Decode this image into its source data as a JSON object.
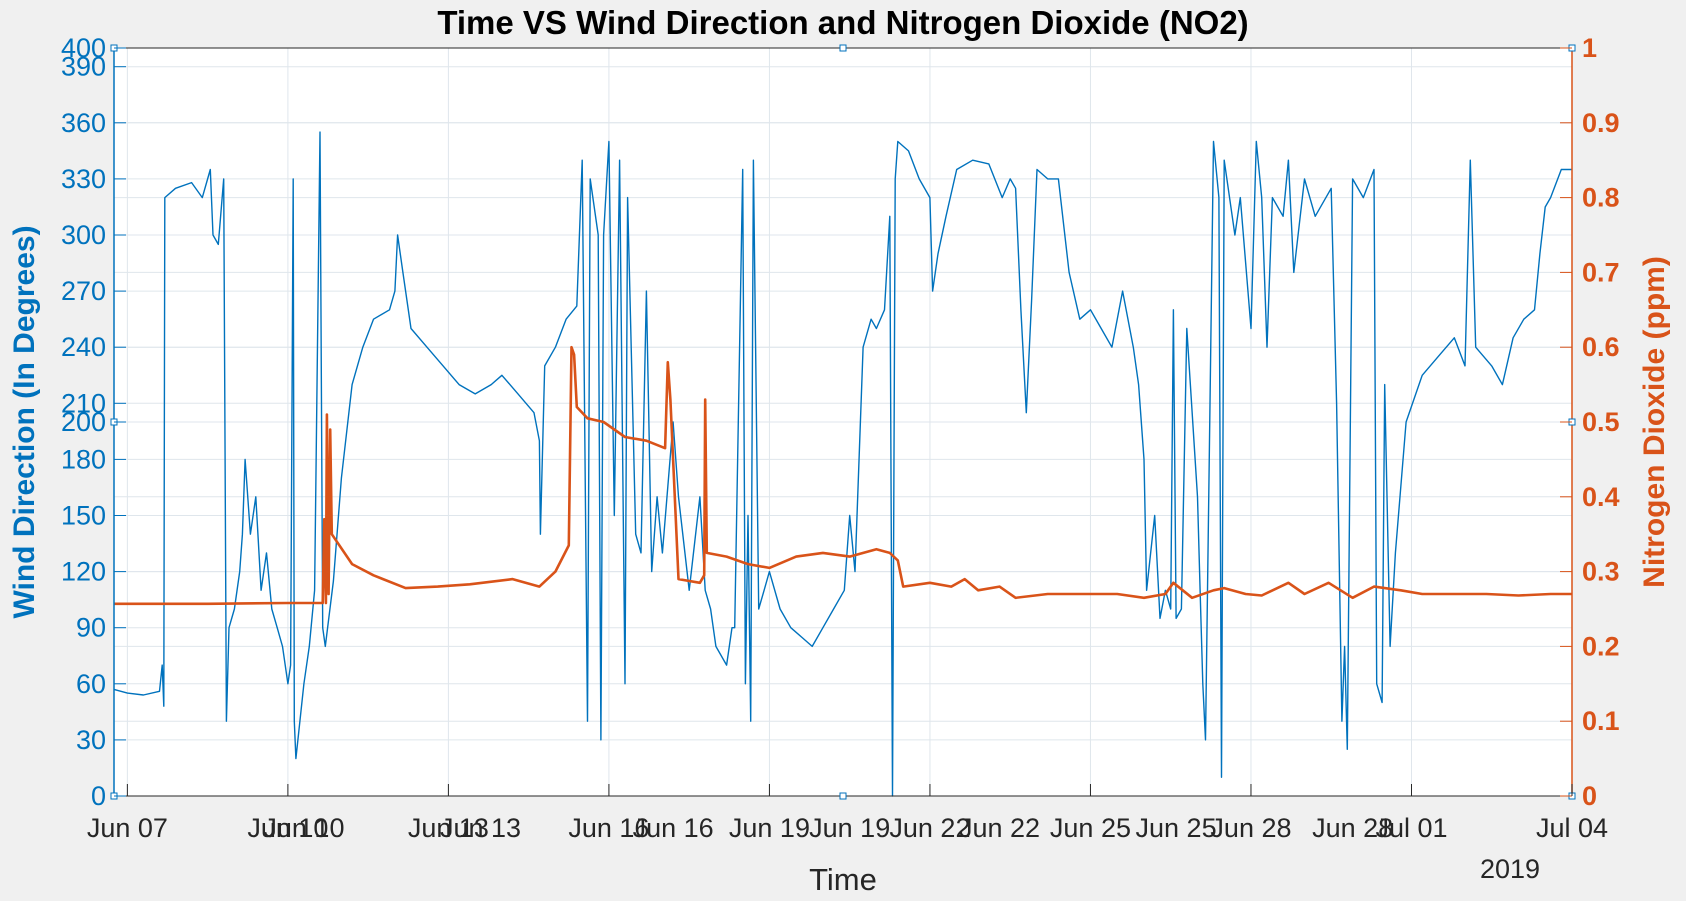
{
  "chart_data": {
    "type": "line",
    "title": "Time VS Wind Direction and Nitrogen Dioxide (NO2)",
    "xlabel": "Time",
    "year_label": "2019",
    "x_ticks": [
      "Jun 07",
      "Jun 10",
      "Jun 13",
      "Jun 16",
      "Jun 19",
      "Jun 22",
      "Jun 25",
      "Jun 28",
      "Jul 01",
      "Jul 04"
    ],
    "x_ticks_overlay": [
      "Jun 10",
      "Jun 13",
      "Jun 16",
      "Jun 19",
      "Jun 22",
      "Jun 25",
      "Jun 28"
    ],
    "x_range_days": [
      6.75,
      34
    ],
    "grid": true,
    "colors": {
      "left": "#0072bd",
      "right": "#d95319",
      "grid": "#dfe6ec",
      "axis": "#262626"
    },
    "left_axis": {
      "label": "Wind Direction (In Degrees)",
      "ylim": [
        0,
        400
      ],
      "ticks_bottom": [
        "0",
        "30",
        "60",
        "90",
        "120",
        "150",
        "180",
        "200"
      ],
      "ticks_top": [
        "210",
        "240",
        "270",
        "300",
        "330",
        "360",
        "390",
        "400"
      ]
    },
    "right_axis": {
      "label": "Nitrogen Dioxide (ppm)",
      "ylim": [
        0,
        1
      ],
      "ticks": [
        "0",
        "0.1",
        "0.2",
        "0.3",
        "0.4",
        "0.5",
        "0.6",
        "0.7",
        "0.8",
        "0.9",
        "1"
      ]
    },
    "series": [
      {
        "axis": "left",
        "color": "#0072bd",
        "points": [
          [
            6.75,
            57
          ],
          [
            7.0,
            55
          ],
          [
            7.3,
            54
          ],
          [
            7.6,
            56
          ],
          [
            7.65,
            70
          ],
          [
            7.68,
            48
          ],
          [
            7.7,
            320
          ],
          [
            7.9,
            325
          ],
          [
            8.2,
            328
          ],
          [
            8.4,
            320
          ],
          [
            8.55,
            335
          ],
          [
            8.6,
            300
          ],
          [
            8.7,
            295
          ],
          [
            8.8,
            330
          ],
          [
            8.85,
            40
          ],
          [
            8.9,
            90
          ],
          [
            9.0,
            100
          ],
          [
            9.1,
            120
          ],
          [
            9.15,
            140
          ],
          [
            9.2,
            180
          ],
          [
            9.3,
            140
          ],
          [
            9.4,
            160
          ],
          [
            9.5,
            110
          ],
          [
            9.6,
            130
          ],
          [
            9.7,
            100
          ],
          [
            9.8,
            90
          ],
          [
            9.9,
            80
          ],
          [
            10.0,
            60
          ],
          [
            10.05,
            70
          ],
          [
            10.1,
            330
          ],
          [
            10.12,
            40
          ],
          [
            10.15,
            20
          ],
          [
            10.3,
            60
          ],
          [
            10.4,
            80
          ],
          [
            10.5,
            110
          ],
          [
            10.6,
            355
          ],
          [
            10.65,
            90
          ],
          [
            10.7,
            80
          ],
          [
            10.85,
            115
          ],
          [
            11.0,
            170
          ],
          [
            11.2,
            220
          ],
          [
            11.4,
            240
          ],
          [
            11.6,
            255
          ],
          [
            11.9,
            260
          ],
          [
            12.0,
            270
          ],
          [
            12.05,
            300
          ],
          [
            12.15,
            280
          ],
          [
            12.3,
            250
          ],
          [
            12.6,
            240
          ],
          [
            12.9,
            230
          ],
          [
            13.2,
            220
          ],
          [
            13.5,
            215
          ],
          [
            13.8,
            220
          ],
          [
            14.0,
            225
          ],
          [
            14.3,
            215
          ],
          [
            14.6,
            205
          ],
          [
            14.7,
            190
          ],
          [
            14.72,
            140
          ],
          [
            14.8,
            230
          ],
          [
            15.0,
            240
          ],
          [
            15.2,
            255
          ],
          [
            15.4,
            262
          ],
          [
            15.5,
            340
          ],
          [
            15.6,
            40
          ],
          [
            15.65,
            330
          ],
          [
            15.8,
            300
          ],
          [
            15.85,
            30
          ],
          [
            15.9,
            300
          ],
          [
            16.0,
            350
          ],
          [
            16.1,
            150
          ],
          [
            16.2,
            340
          ],
          [
            16.3,
            60
          ],
          [
            16.35,
            320
          ],
          [
            16.5,
            140
          ],
          [
            16.6,
            130
          ],
          [
            16.7,
            270
          ],
          [
            16.8,
            120
          ],
          [
            16.9,
            160
          ],
          [
            17.0,
            130
          ],
          [
            17.2,
            200
          ],
          [
            17.3,
            160
          ],
          [
            17.5,
            110
          ],
          [
            17.7,
            160
          ],
          [
            17.8,
            110
          ],
          [
            17.9,
            100
          ],
          [
            18.0,
            80
          ],
          [
            18.2,
            70
          ],
          [
            18.3,
            90
          ],
          [
            18.35,
            90
          ],
          [
            18.5,
            335
          ],
          [
            18.55,
            60
          ],
          [
            18.6,
            150
          ],
          [
            18.65,
            40
          ],
          [
            18.7,
            340
          ],
          [
            18.8,
            100
          ],
          [
            18.9,
            110
          ],
          [
            19.0,
            120
          ],
          [
            19.2,
            100
          ],
          [
            19.4,
            90
          ],
          [
            19.6,
            85
          ],
          [
            19.8,
            80
          ],
          [
            20.0,
            90
          ],
          [
            20.2,
            100
          ],
          [
            20.4,
            110
          ],
          [
            20.5,
            150
          ],
          [
            20.6,
            120
          ],
          [
            20.75,
            240
          ],
          [
            20.9,
            255
          ],
          [
            21.0,
            250
          ],
          [
            21.15,
            260
          ],
          [
            21.25,
            310
          ],
          [
            21.3,
            0
          ],
          [
            21.35,
            330
          ],
          [
            21.4,
            350
          ],
          [
            21.6,
            345
          ],
          [
            21.8,
            330
          ],
          [
            22.0,
            320
          ],
          [
            22.05,
            270
          ],
          [
            22.15,
            290
          ],
          [
            22.3,
            310
          ],
          [
            22.5,
            335
          ],
          [
            22.8,
            340
          ],
          [
            23.1,
            338
          ],
          [
            23.35,
            320
          ],
          [
            23.5,
            330
          ],
          [
            23.6,
            325
          ],
          [
            23.7,
            260
          ],
          [
            23.8,
            205
          ],
          [
            23.9,
            265
          ],
          [
            24.0,
            335
          ],
          [
            24.2,
            330
          ],
          [
            24.4,
            330
          ],
          [
            24.6,
            280
          ],
          [
            24.8,
            255
          ],
          [
            25.0,
            260
          ],
          [
            25.2,
            250
          ],
          [
            25.4,
            240
          ],
          [
            25.6,
            270
          ],
          [
            25.8,
            240
          ],
          [
            25.9,
            220
          ],
          [
            26.0,
            180
          ],
          [
            26.05,
            110
          ],
          [
            26.2,
            150
          ],
          [
            26.3,
            95
          ],
          [
            26.4,
            110
          ],
          [
            26.5,
            100
          ],
          [
            26.55,
            260
          ],
          [
            26.6,
            95
          ],
          [
            26.7,
            100
          ],
          [
            26.8,
            250
          ],
          [
            27.0,
            160
          ],
          [
            27.05,
            110
          ],
          [
            27.1,
            60
          ],
          [
            27.15,
            30
          ],
          [
            27.3,
            350
          ],
          [
            27.4,
            320
          ],
          [
            27.45,
            10
          ],
          [
            27.5,
            340
          ],
          [
            27.7,
            300
          ],
          [
            27.8,
            320
          ],
          [
            28.0,
            250
          ],
          [
            28.1,
            350
          ],
          [
            28.2,
            320
          ],
          [
            28.3,
            240
          ],
          [
            28.4,
            320
          ],
          [
            28.6,
            310
          ],
          [
            28.7,
            340
          ],
          [
            28.8,
            280
          ],
          [
            29.0,
            330
          ],
          [
            29.2,
            310
          ],
          [
            29.5,
            325
          ],
          [
            29.6,
            210
          ],
          [
            29.7,
            40
          ],
          [
            29.75,
            80
          ],
          [
            29.8,
            25
          ],
          [
            29.9,
            330
          ],
          [
            30.1,
            320
          ],
          [
            30.3,
            335
          ],
          [
            30.35,
            60
          ],
          [
            30.45,
            50
          ],
          [
            30.5,
            220
          ],
          [
            30.6,
            80
          ],
          [
            30.7,
            130
          ],
          [
            30.9,
            200
          ],
          [
            31.2,
            225
          ],
          [
            31.5,
            235
          ],
          [
            31.8,
            245
          ],
          [
            32.0,
            230
          ],
          [
            32.1,
            340
          ],
          [
            32.2,
            240
          ],
          [
            32.5,
            230
          ],
          [
            32.7,
            220
          ],
          [
            32.9,
            245
          ],
          [
            33.1,
            255
          ],
          [
            33.3,
            260
          ],
          [
            33.4,
            290
          ],
          [
            33.5,
            315
          ],
          [
            33.6,
            320
          ],
          [
            33.8,
            335
          ],
          [
            34.0,
            335
          ]
        ]
      },
      {
        "axis": "right",
        "color": "#d95319",
        "points": [
          [
            6.75,
            0.257
          ],
          [
            8.5,
            0.257
          ],
          [
            10.0,
            0.258
          ],
          [
            10.65,
            0.258
          ],
          [
            10.68,
            0.37
          ],
          [
            10.71,
            0.258
          ],
          [
            10.73,
            0.51
          ],
          [
            10.76,
            0.27
          ],
          [
            10.79,
            0.49
          ],
          [
            10.82,
            0.35
          ],
          [
            11.2,
            0.31
          ],
          [
            11.6,
            0.295
          ],
          [
            12.2,
            0.278
          ],
          [
            12.8,
            0.28
          ],
          [
            13.4,
            0.283
          ],
          [
            14.2,
            0.29
          ],
          [
            14.7,
            0.28
          ],
          [
            15.0,
            0.3
          ],
          [
            15.25,
            0.335
          ],
          [
            15.3,
            0.6
          ],
          [
            15.35,
            0.59
          ],
          [
            15.4,
            0.52
          ],
          [
            15.6,
            0.505
          ],
          [
            15.9,
            0.5
          ],
          [
            16.3,
            0.48
          ],
          [
            16.7,
            0.475
          ],
          [
            17.05,
            0.465
          ],
          [
            17.1,
            0.58
          ],
          [
            17.15,
            0.53
          ],
          [
            17.3,
            0.29
          ],
          [
            17.7,
            0.285
          ],
          [
            17.78,
            0.295
          ],
          [
            17.8,
            0.53
          ],
          [
            17.83,
            0.325
          ],
          [
            18.2,
            0.32
          ],
          [
            18.6,
            0.31
          ],
          [
            19.0,
            0.305
          ],
          [
            19.5,
            0.32
          ],
          [
            20.0,
            0.325
          ],
          [
            20.5,
            0.32
          ],
          [
            21.0,
            0.33
          ],
          [
            21.25,
            0.325
          ],
          [
            21.4,
            0.315
          ],
          [
            21.5,
            0.28
          ],
          [
            22.0,
            0.285
          ],
          [
            22.4,
            0.28
          ],
          [
            22.65,
            0.29
          ],
          [
            22.9,
            0.275
          ],
          [
            23.3,
            0.28
          ],
          [
            23.6,
            0.265
          ],
          [
            24.2,
            0.27
          ],
          [
            25.0,
            0.27
          ],
          [
            25.5,
            0.27
          ],
          [
            26.0,
            0.265
          ],
          [
            26.4,
            0.27
          ],
          [
            26.55,
            0.285
          ],
          [
            26.9,
            0.265
          ],
          [
            27.3,
            0.275
          ],
          [
            27.5,
            0.278
          ],
          [
            27.9,
            0.27
          ],
          [
            28.2,
            0.268
          ],
          [
            28.7,
            0.285
          ],
          [
            29.0,
            0.27
          ],
          [
            29.45,
            0.285
          ],
          [
            29.9,
            0.265
          ],
          [
            30.3,
            0.28
          ],
          [
            30.8,
            0.275
          ],
          [
            31.2,
            0.27
          ],
          [
            31.8,
            0.27
          ],
          [
            32.4,
            0.27
          ],
          [
            33.0,
            0.268
          ],
          [
            33.6,
            0.27
          ],
          [
            34.0,
            0.27
          ]
        ]
      }
    ]
  }
}
